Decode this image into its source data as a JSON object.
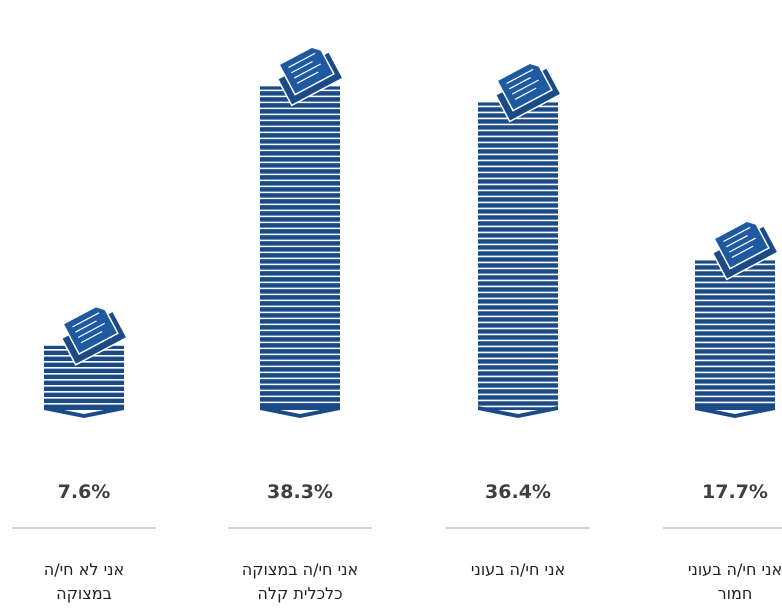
{
  "chart_data": {
    "type": "bar",
    "style": "pictorial-paper-stacks",
    "categories": [
      [
        "אני לא חי/ה",
        "במצוקה"
      ],
      [
        "אני חי/ה במצוקה",
        "כלכלית קלה"
      ],
      [
        "אני חי/ה בעוני"
      ],
      [
        "אני חי/ה בעוני",
        "חמור"
      ]
    ],
    "values": [
      7.6,
      38.3,
      36.4,
      17.7
    ],
    "value_labels": [
      "7.6%",
      "38.3%",
      "36.4%",
      "17.7%"
    ],
    "colors": {
      "stack": "#1a4b86",
      "sheet_face": "#1d5aa0",
      "stripe": "#ffffff",
      "text_value": "#3f3f3f",
      "text_label": "#222222",
      "separator": "#b9b9b9"
    }
  }
}
